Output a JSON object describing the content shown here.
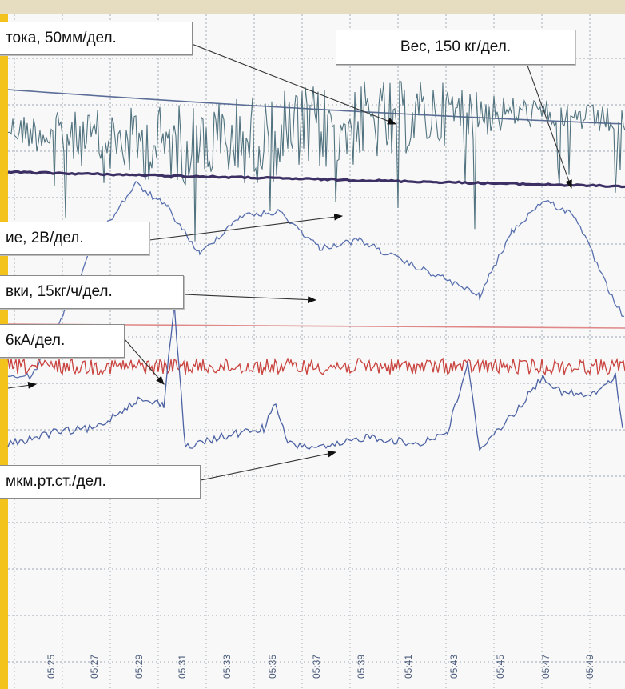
{
  "chart_data": {
    "type": "line",
    "x_tick_labels": [
      "05:25",
      "05:27",
      "05:29",
      "05:31",
      "05:33",
      "05:35",
      "05:37",
      "05:39",
      "05:41",
      "05:43",
      "05:45",
      "05:47",
      "05:49"
    ],
    "series": [
      {
        "name": "тока, 50мм/дел.",
        "color": "#5c6e98",
        "shape": "smooth-declining"
      },
      {
        "name": "Вес, 150 кг/дел.",
        "color": "#3b2f63",
        "shape": "flat-slight-decline"
      },
      {
        "name": "ие, 2В/дел.",
        "color": "#486a78",
        "shape": "noisy-band"
      },
      {
        "name": "вки, 15кг/ч/дел.",
        "color": "#e08888",
        "shape": "flat"
      },
      {
        "name": "6кА/дел.",
        "color": "#c9423e",
        "shape": "noisy-flat"
      },
      {
        "name": "мкм.рт.ст./дел.",
        "color": "#4d62a4",
        "shape": "wandering"
      }
    ],
    "grid": true
  },
  "labels": {
    "current": "тока,  50мм/дел.",
    "weight": "Вес, 150 кг/дел.",
    "voltage": "ие,  2В/дел.",
    "feed": "вки,  15кг/ч/дел.",
    "ka": "6кА/дел.",
    "pressure": "мкм.рт.ст./дел."
  },
  "colors": {
    "paper": "#f7f8f7",
    "grid": "#7d8b9a",
    "accent_bar": "#f3c31b",
    "top_band": "#e6dcbf"
  }
}
